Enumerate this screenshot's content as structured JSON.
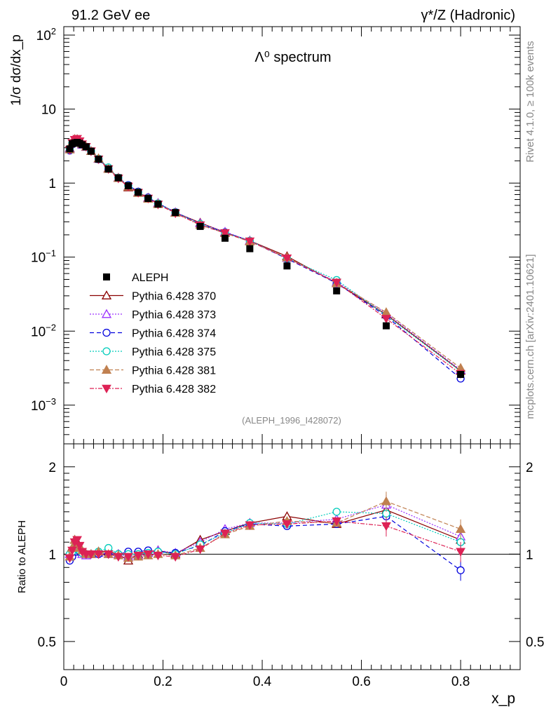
{
  "header": {
    "left": "91.2 GeV ee",
    "right": "γ*/Z (Hadronic)"
  },
  "side": {
    "top": "Rivet 4.1.0, ≥ 100k events",
    "bottom": "mcplots.cern.ch [arXiv:2401.10621]"
  },
  "chart_data": {
    "type": "scatter",
    "title": "Λ⁰ spectrum",
    "watermark": "(ALEPH_1996_I428072)",
    "xlabel": "x_p",
    "ylabel": "1/σ dσ/dx_p",
    "ratio_ylabel": "Ratio to ALEPH",
    "xlim": [
      0,
      0.92
    ],
    "ylim": [
      0.0003,
      130
    ],
    "yscale": "log",
    "ratio_ylim": [
      0.4,
      2.4
    ],
    "ratio_yscale": "log",
    "x_ticks": [
      "0",
      "0.2",
      "0.4",
      "0.6",
      "0.8"
    ],
    "y_ticks": [
      "10^-3",
      "10^-2",
      "10^-1",
      "1",
      "10",
      "10^2"
    ],
    "ratio_ticks": [
      "0.5",
      "1",
      "2"
    ],
    "x": [
      0.012,
      0.017,
      0.022,
      0.027,
      0.032,
      0.037,
      0.045,
      0.055,
      0.07,
      0.09,
      0.11,
      0.13,
      0.15,
      0.17,
      0.19,
      0.225,
      0.275,
      0.325,
      0.375,
      0.45,
      0.55,
      0.65,
      0.8
    ],
    "data": {
      "name": "ALEPH",
      "values": [
        2.9,
        3.4,
        3.5,
        3.55,
        3.45,
        3.3,
        3.1,
        2.7,
        2.1,
        1.55,
        1.18,
        0.92,
        0.75,
        0.62,
        0.52,
        0.4,
        0.26,
        0.18,
        0.13,
        0.076,
        0.035,
        0.0118,
        0.0026
      ]
    },
    "series": [
      {
        "name": "Pythia 6.428 370",
        "color": "#8b0000",
        "dash": "solid",
        "marker": "triangle-open",
        "ratio": [
          1.02,
          1.05,
          1.12,
          1.1,
          1.06,
          1.02,
          1.0,
          1.0,
          1.02,
          1.02,
          1.0,
          0.95,
          1.0,
          1.02,
          1.03,
          1.0,
          1.12,
          1.2,
          1.28,
          1.35,
          1.27,
          1.42,
          1.12
        ]
      },
      {
        "name": "Pythia 6.428 373",
        "color": "#9b30ff",
        "dash": "2,2",
        "marker": "triangle-open",
        "ratio": [
          1.0,
          1.03,
          1.08,
          1.05,
          1.03,
          1.0,
          0.99,
          1.0,
          1.01,
          1.0,
          1.0,
          0.98,
          0.99,
          1.01,
          1.03,
          1.01,
          1.1,
          1.22,
          1.28,
          1.28,
          1.32,
          1.48,
          1.15
        ]
      },
      {
        "name": "Pythia 6.428 374",
        "color": "#0000dd",
        "dash": "6,4",
        "marker": "circle-open",
        "ratio": [
          0.95,
          0.98,
          1.02,
          1.02,
          1.02,
          1.01,
          1.0,
          1.0,
          1.0,
          1.0,
          1.0,
          1.02,
          1.02,
          1.03,
          1.02,
          1.01,
          1.07,
          1.2,
          1.27,
          1.25,
          1.27,
          1.35,
          0.88
        ]
      },
      {
        "name": "Pythia 6.428 375",
        "color": "#00ccbb",
        "dash": "2,2",
        "marker": "circle-open",
        "ratio": [
          1.0,
          1.02,
          1.05,
          1.04,
          1.03,
          1.01,
          1.0,
          1.0,
          1.02,
          1.05,
          1.0,
          1.0,
          1.0,
          1.01,
          1.02,
          1.0,
          1.08,
          1.18,
          1.28,
          1.27,
          1.4,
          1.38,
          1.1
        ]
      },
      {
        "name": "Pythia 6.428 381",
        "color": "#c08050",
        "dash": "6,3",
        "marker": "triangle-filled",
        "ratio": [
          0.98,
          1.05,
          1.12,
          1.08,
          1.05,
          1.03,
          1.0,
          1.0,
          1.02,
          1.0,
          0.99,
          0.97,
          0.98,
          0.99,
          1.0,
          0.99,
          1.05,
          1.17,
          1.25,
          1.3,
          1.28,
          1.52,
          1.22
        ]
      },
      {
        "name": "Pythia 6.428 382",
        "color": "#dd2255",
        "dash": "6,2,2,2",
        "marker": "triangle-down-filled",
        "ratio": [
          0.97,
          1.03,
          1.1,
          1.12,
          1.07,
          1.02,
          1.0,
          1.0,
          1.0,
          1.0,
          0.98,
          0.98,
          0.99,
          1.0,
          0.99,
          0.98,
          1.04,
          1.18,
          1.26,
          1.27,
          1.3,
          1.25,
          1.02
        ]
      }
    ]
  }
}
